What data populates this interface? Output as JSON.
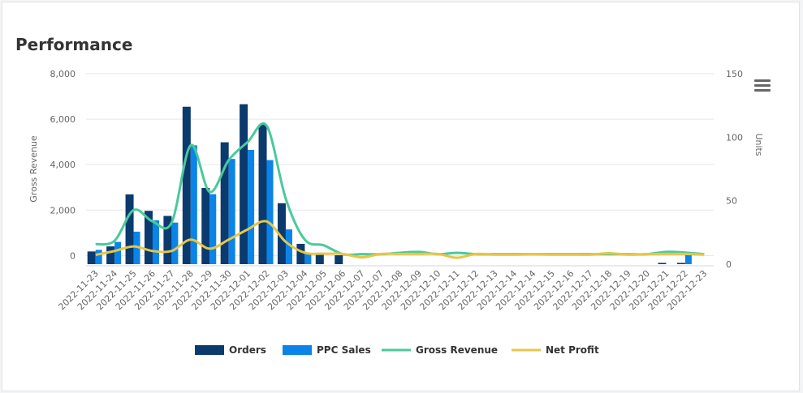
{
  "header": {
    "title": "Performance"
  },
  "menu": {
    "icon": "hamburger-menu-icon"
  },
  "chart_data": {
    "type": "bar",
    "categories": [
      "2022-11-23",
      "2022-11-24",
      "2022-11-25",
      "2022-11-26",
      "2022-11-27",
      "2022-11-28",
      "2022-11-29",
      "2022-11-30",
      "2022-12-01",
      "2022-12-02",
      "2022-12-03",
      "2022-12-04",
      "2022-12-05",
      "2022-12-06",
      "2022-12-07",
      "2022-12-07",
      "2022-12-08",
      "2022-12-09",
      "2022-12-10",
      "2022-12-11",
      "2022-12-12",
      "2022-12-13",
      "2022-12-14",
      "2022-12-14",
      "2022-12-15",
      "2022-12-16",
      "2022-12-17",
      "2022-12-18",
      "2022-12-19",
      "2022-12-20",
      "2022-12-21",
      "2022-12-22",
      "2022-12-23"
    ],
    "y_left": {
      "label": "Gross Revenue",
      "ticks": [
        "0",
        "2,000",
        "4,000",
        "6,000",
        "8,000"
      ],
      "range": [
        -380,
        8000
      ]
    },
    "y_right": {
      "label": "Units",
      "ticks": [
        "0",
        "50",
        "100",
        "150"
      ],
      "range": [
        0,
        150
      ]
    },
    "series": [
      {
        "name": "Orders",
        "type": "column",
        "axis": "right",
        "color": "#0b3a6e",
        "values": [
          10,
          14,
          55,
          42,
          38,
          124,
          60,
          96,
          126,
          110,
          48,
          16,
          9,
          7,
          0,
          0,
          0,
          0,
          0,
          0,
          0,
          0,
          0,
          0,
          0,
          0,
          0,
          0,
          0,
          0,
          1,
          1,
          0
        ]
      },
      {
        "name": "PPC Sales",
        "type": "column",
        "axis": "left",
        "color": "#0a84e8",
        "values": [
          250,
          600,
          1050,
          1550,
          1450,
          4850,
          2700,
          4250,
          4650,
          4200,
          1150,
          100,
          0,
          0,
          0,
          0,
          0,
          0,
          0,
          0,
          0,
          0,
          0,
          0,
          0,
          0,
          0,
          0,
          0,
          0,
          0,
          150,
          0
        ]
      },
      {
        "name": "Gross Revenue",
        "type": "spline",
        "axis": "left",
        "color": "#4ac99b",
        "values": [
          500,
          650,
          2000,
          1500,
          1450,
          4850,
          2800,
          4200,
          5000,
          5700,
          2500,
          700,
          450,
          60,
          60,
          60,
          120,
          160,
          60,
          120,
          60,
          60,
          60,
          60,
          60,
          60,
          60,
          60,
          60,
          60,
          160,
          130,
          60
        ]
      },
      {
        "name": "Net Profit",
        "type": "spline",
        "axis": "left",
        "color": "#e8c547",
        "values": [
          30,
          200,
          400,
          200,
          200,
          700,
          300,
          700,
          1150,
          1500,
          600,
          120,
          80,
          70,
          -80,
          70,
          70,
          70,
          70,
          -100,
          70,
          40,
          40,
          60,
          40,
          40,
          40,
          100,
          40,
          60,
          70,
          70,
          40
        ]
      }
    ],
    "legend": {
      "position": "bottom-center"
    },
    "grid": true
  }
}
